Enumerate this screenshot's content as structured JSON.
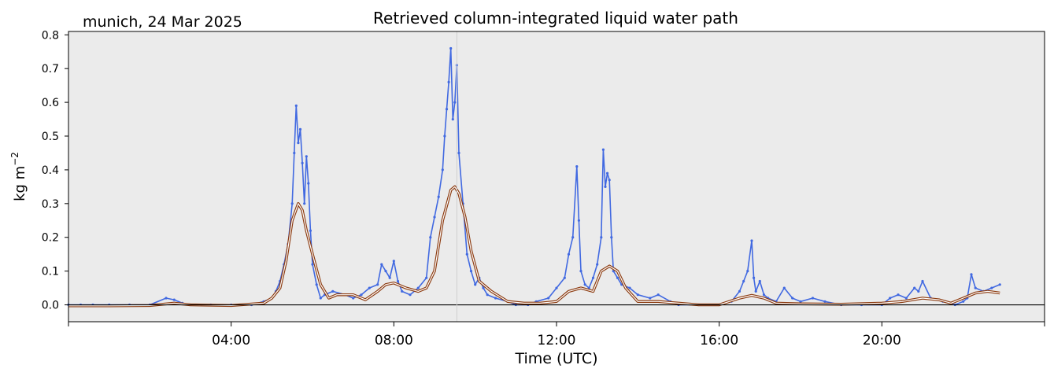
{
  "chart_data": {
    "type": "line",
    "title": "Retrieved column-integrated liquid water path",
    "subtitle": "munich, 24 Mar 2025",
    "xlabel": "Time (UTC)",
    "ylabel": "kg m",
    "ylabel_superscript": "−2",
    "x_units": "hours (UTC)",
    "xlim": [
      0,
      24
    ],
    "ylim": [
      -0.05,
      0.81
    ],
    "x_ticks": [
      {
        "value": 4,
        "label": "04:00"
      },
      {
        "value": 8,
        "label": "08:00"
      },
      {
        "value": 12,
        "label": "12:00"
      },
      {
        "value": 16,
        "label": "16:00"
      },
      {
        "value": 20,
        "label": "20:00"
      }
    ],
    "x_minor_ticks": [
      0,
      24
    ],
    "y_ticks": [
      {
        "value": 0.0,
        "label": "0.0"
      },
      {
        "value": 0.1,
        "label": "0.1"
      },
      {
        "value": 0.2,
        "label": "0.2"
      },
      {
        "value": 0.3,
        "label": "0.3"
      },
      {
        "value": 0.4,
        "label": "0.4"
      },
      {
        "value": 0.5,
        "label": "0.5"
      },
      {
        "value": 0.6,
        "label": "0.6"
      },
      {
        "value": 0.7,
        "label": "0.7"
      },
      {
        "value": 0.8,
        "label": "0.8"
      }
    ],
    "zero_line": 0.0,
    "vertical_line_x": 9.55,
    "grid": false,
    "colors": {
      "background": "#ebebeb",
      "raw": "#4169e1",
      "smoothed_outline": "#8b3a0f",
      "smoothed_inner": "#ffffff",
      "zero_line": "#000000"
    },
    "series": [
      {
        "style": "dense scatter",
        "x": [
          0.0,
          0.3,
          0.6,
          1.0,
          1.5,
          2.0,
          2.4,
          2.6,
          2.8,
          3.0,
          3.5,
          4.0,
          4.5,
          4.8,
          5.0,
          5.1,
          5.2,
          5.3,
          5.4,
          5.5,
          5.55,
          5.6,
          5.65,
          5.7,
          5.75,
          5.8,
          5.85,
          5.9,
          5.95,
          6.0,
          6.1,
          6.2,
          6.3,
          6.5,
          6.8,
          7.0,
          7.2,
          7.4,
          7.6,
          7.7,
          7.8,
          7.9,
          8.0,
          8.1,
          8.2,
          8.4,
          8.6,
          8.8,
          8.9,
          9.0,
          9.1,
          9.2,
          9.25,
          9.3,
          9.35,
          9.4,
          9.45,
          9.5,
          9.55,
          9.6,
          9.7,
          9.8,
          9.9,
          10.0,
          10.1,
          10.2,
          10.3,
          10.5,
          10.8,
          11.0,
          11.3,
          11.5,
          11.8,
          12.0,
          12.2,
          12.3,
          12.4,
          12.5,
          12.55,
          12.6,
          12.7,
          12.8,
          12.9,
          13.0,
          13.1,
          13.15,
          13.2,
          13.25,
          13.3,
          13.35,
          13.4,
          13.5,
          13.6,
          13.8,
          14.0,
          14.3,
          14.5,
          14.8,
          15.0,
          15.5,
          16.0,
          16.3,
          16.5,
          16.6,
          16.7,
          16.8,
          16.85,
          16.9,
          17.0,
          17.1,
          17.2,
          17.4,
          17.6,
          17.8,
          18.0,
          18.3,
          18.6,
          19.0,
          19.5,
          20.0,
          20.2,
          20.4,
          20.6,
          20.8,
          20.9,
          21.0,
          21.2,
          21.5,
          21.8,
          22.0,
          22.1,
          22.2,
          22.3,
          22.5,
          22.7,
          22.9
        ],
        "y": [
          0.0,
          0.0,
          0.0,
          0.0,
          0.0,
          0.0,
          0.02,
          0.015,
          0.005,
          0.0,
          0.0,
          0.0,
          0.0,
          0.01,
          0.02,
          0.04,
          0.07,
          0.12,
          0.18,
          0.3,
          0.45,
          0.59,
          0.48,
          0.52,
          0.42,
          0.3,
          0.44,
          0.36,
          0.22,
          0.12,
          0.06,
          0.02,
          0.03,
          0.04,
          0.03,
          0.02,
          0.03,
          0.05,
          0.06,
          0.12,
          0.1,
          0.08,
          0.13,
          0.07,
          0.04,
          0.03,
          0.05,
          0.08,
          0.2,
          0.26,
          0.32,
          0.4,
          0.5,
          0.58,
          0.66,
          0.76,
          0.55,
          0.6,
          0.71,
          0.45,
          0.3,
          0.15,
          0.1,
          0.06,
          0.08,
          0.05,
          0.03,
          0.02,
          0.01,
          0.0,
          0.0,
          0.01,
          0.02,
          0.05,
          0.08,
          0.15,
          0.2,
          0.41,
          0.25,
          0.1,
          0.06,
          0.05,
          0.08,
          0.12,
          0.2,
          0.46,
          0.35,
          0.39,
          0.37,
          0.2,
          0.1,
          0.08,
          0.06,
          0.05,
          0.03,
          0.02,
          0.03,
          0.01,
          0.0,
          0.0,
          0.0,
          0.01,
          0.04,
          0.07,
          0.1,
          0.19,
          0.08,
          0.04,
          0.07,
          0.03,
          0.02,
          0.01,
          0.05,
          0.02,
          0.01,
          0.02,
          0.01,
          0.0,
          0.0,
          0.0,
          0.02,
          0.03,
          0.02,
          0.05,
          0.04,
          0.07,
          0.02,
          0.01,
          0.0,
          0.01,
          0.02,
          0.09,
          0.05,
          0.04,
          0.05,
          0.06
        ]
      },
      {
        "style": "smoothed line",
        "x": [
          0.0,
          1.0,
          2.0,
          2.6,
          3.0,
          4.0,
          4.8,
          5.0,
          5.2,
          5.35,
          5.5,
          5.65,
          5.75,
          5.85,
          6.0,
          6.2,
          6.4,
          6.6,
          7.0,
          7.3,
          7.6,
          7.8,
          8.0,
          8.3,
          8.6,
          8.8,
          9.0,
          9.2,
          9.4,
          9.5,
          9.6,
          9.75,
          9.9,
          10.1,
          10.4,
          10.8,
          11.2,
          11.6,
          12.0,
          12.3,
          12.6,
          12.9,
          13.1,
          13.3,
          13.5,
          13.7,
          14.0,
          14.5,
          15.0,
          15.5,
          16.0,
          16.5,
          16.8,
          17.1,
          17.4,
          18.0,
          19.0,
          20.0,
          20.5,
          21.0,
          21.4,
          21.7,
          22.0,
          22.3,
          22.6,
          22.9
        ],
        "y": [
          -0.003,
          -0.003,
          -0.002,
          0.005,
          0.0,
          -0.002,
          0.005,
          0.02,
          0.05,
          0.13,
          0.25,
          0.3,
          0.28,
          0.22,
          0.15,
          0.06,
          0.02,
          0.03,
          0.03,
          0.015,
          0.04,
          0.06,
          0.065,
          0.05,
          0.04,
          0.05,
          0.1,
          0.25,
          0.34,
          0.35,
          0.33,
          0.26,
          0.16,
          0.07,
          0.04,
          0.01,
          0.005,
          0.005,
          0.01,
          0.04,
          0.05,
          0.04,
          0.1,
          0.115,
          0.1,
          0.05,
          0.01,
          0.01,
          0.005,
          0.0,
          0.0,
          0.02,
          0.028,
          0.02,
          0.005,
          0.003,
          0.002,
          0.005,
          0.01,
          0.02,
          0.015,
          0.005,
          0.02,
          0.035,
          0.04,
          0.035
        ]
      }
    ]
  }
}
